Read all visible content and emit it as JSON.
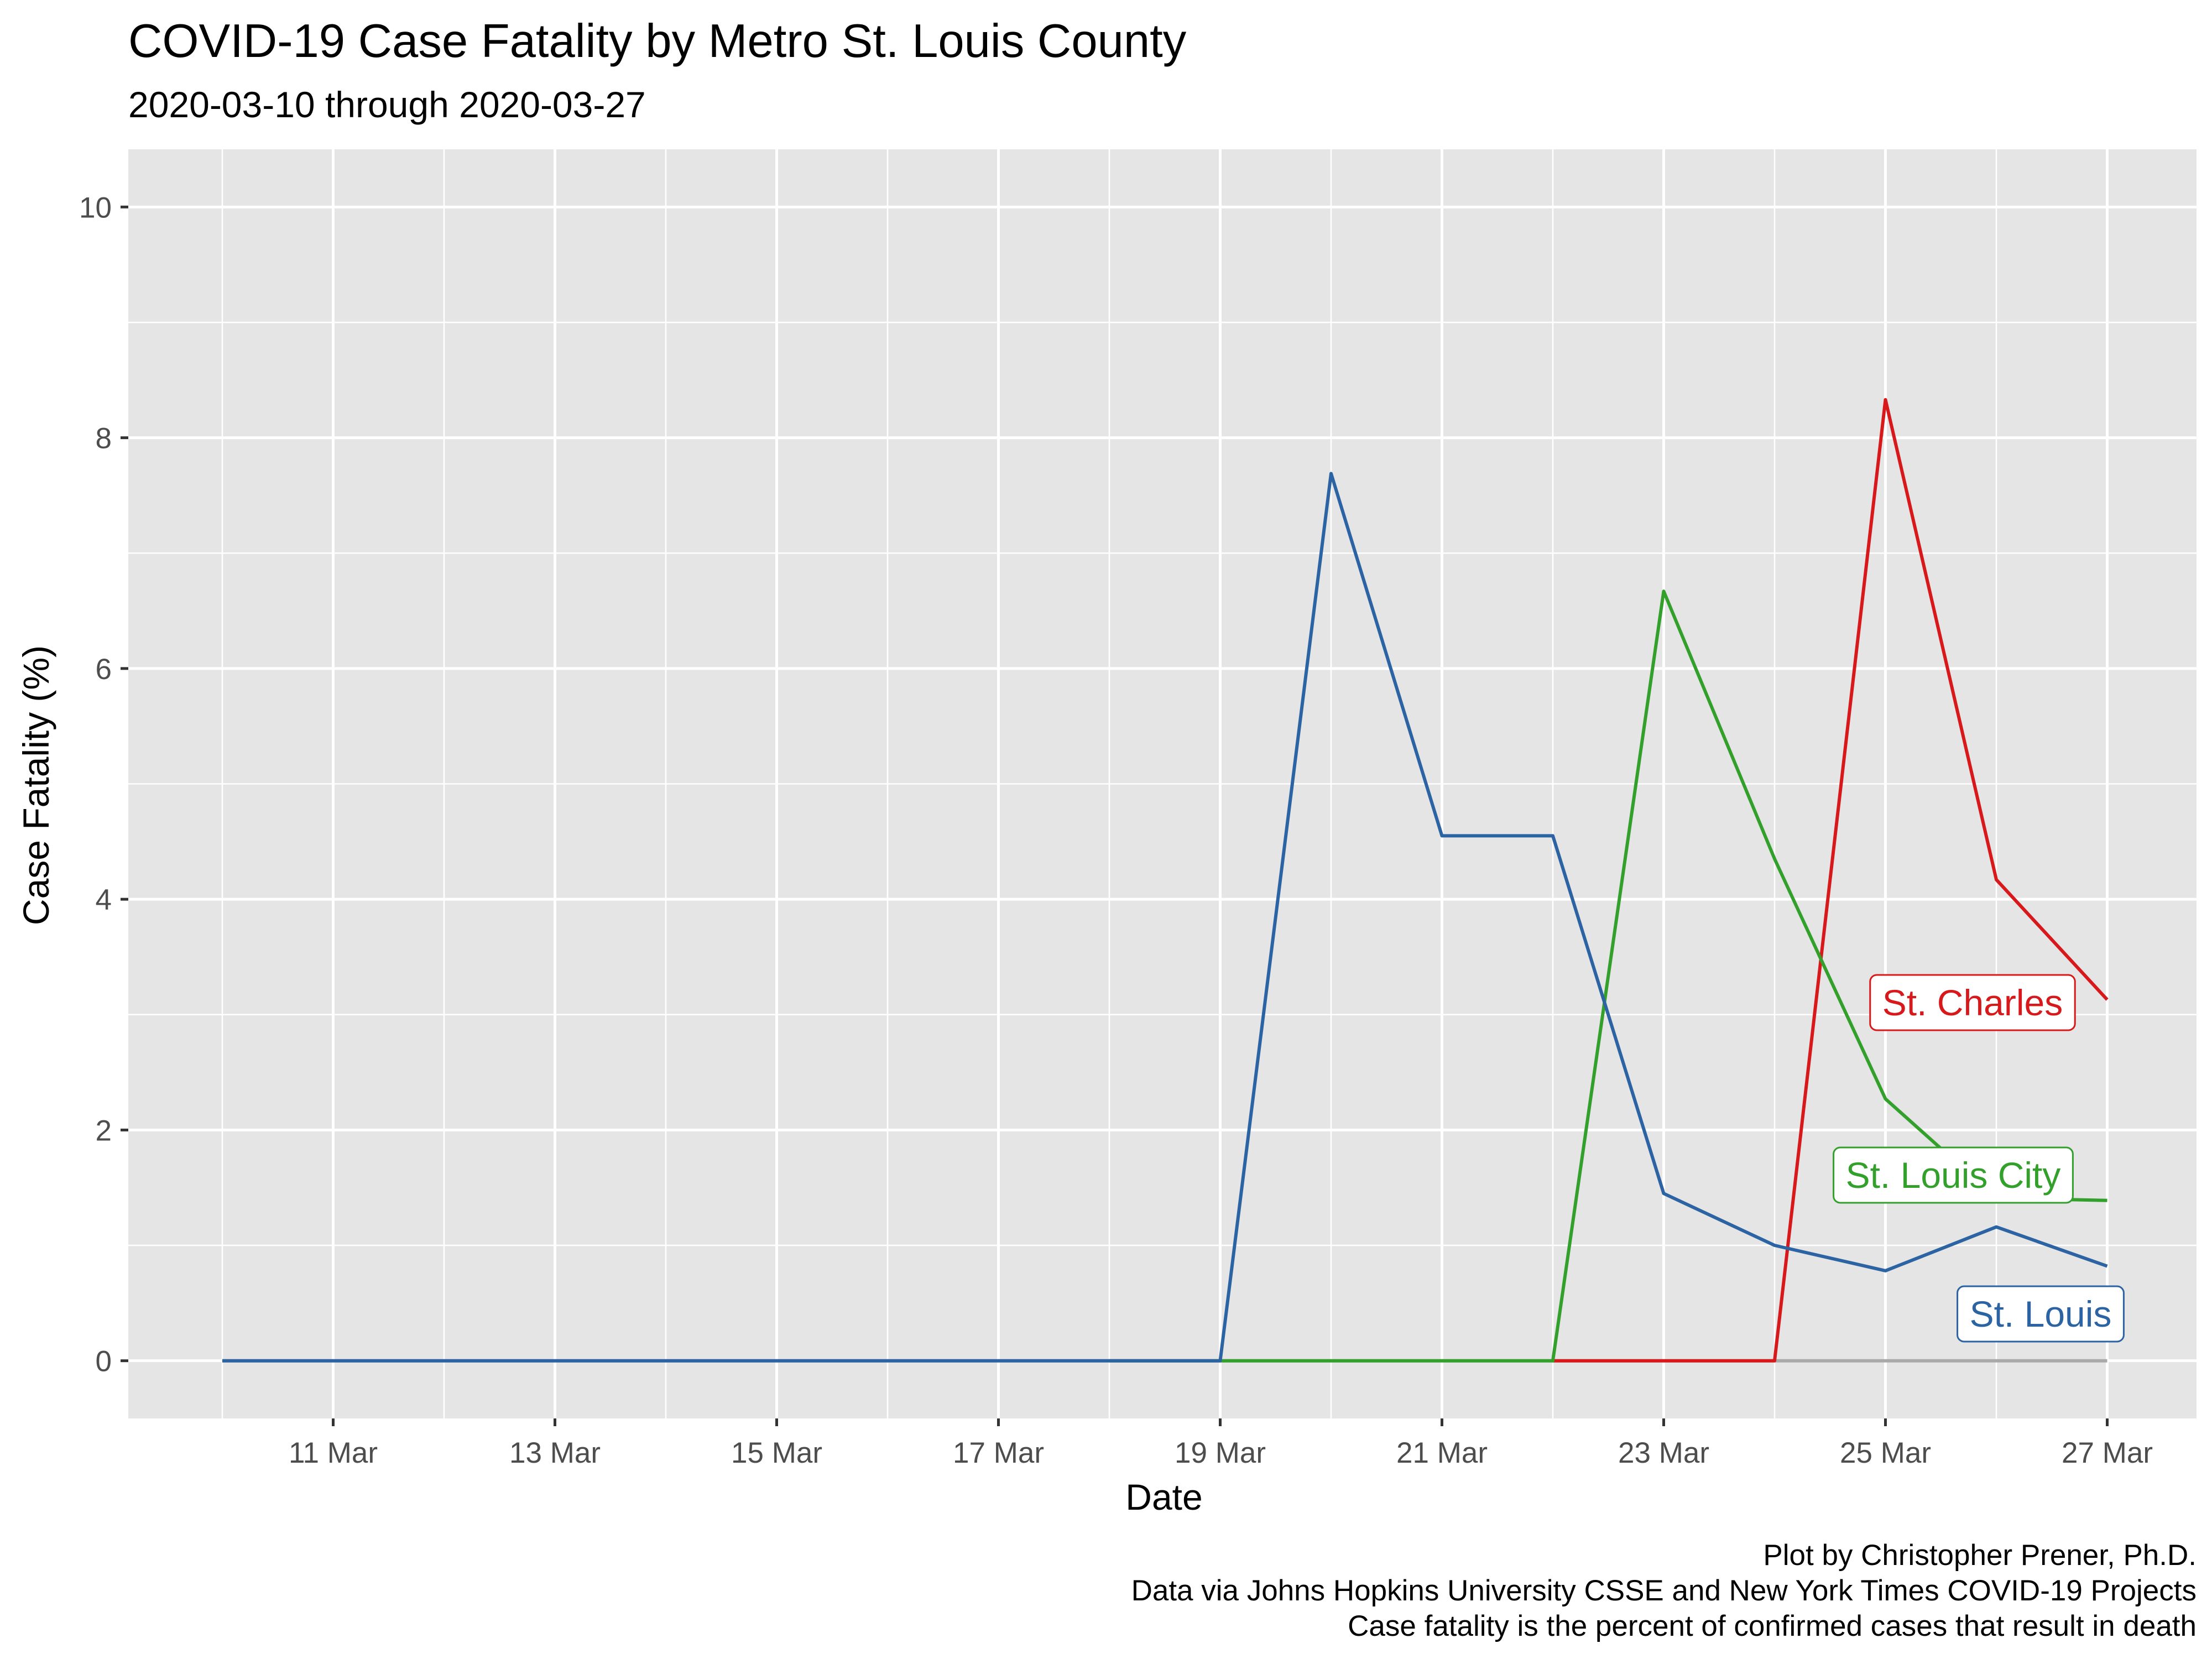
{
  "chart_data": {
    "type": "line",
    "title": "COVID-19 Case Fatality by Metro St. Louis County",
    "subtitle": "2020-03-10 through 2020-03-27",
    "xlabel": "Date",
    "ylabel": "Case Fatality (%)",
    "x": [
      "2020-03-10",
      "2020-03-11",
      "2020-03-12",
      "2020-03-13",
      "2020-03-14",
      "2020-03-15",
      "2020-03-16",
      "2020-03-17",
      "2020-03-18",
      "2020-03-19",
      "2020-03-20",
      "2020-03-21",
      "2020-03-22",
      "2020-03-23",
      "2020-03-24",
      "2020-03-25",
      "2020-03-26",
      "2020-03-27"
    ],
    "x_ticks": [
      "11 Mar",
      "13 Mar",
      "15 Mar",
      "17 Mar",
      "19 Mar",
      "21 Mar",
      "23 Mar",
      "25 Mar",
      "27 Mar"
    ],
    "y_ticks": [
      0,
      2,
      4,
      6,
      8,
      10
    ],
    "ylim": [
      -0.5,
      10.5
    ],
    "grid": true,
    "legend": "direct labels at line ends",
    "background": "#e5e5e5",
    "series": [
      {
        "key": "other",
        "color": "#a9a9a9",
        "x": [
          "2020-03-10",
          "2020-03-11",
          "2020-03-12",
          "2020-03-13",
          "2020-03-14",
          "2020-03-15",
          "2020-03-16",
          "2020-03-17",
          "2020-03-18",
          "2020-03-19",
          "2020-03-20",
          "2020-03-21",
          "2020-03-22",
          "2020-03-23",
          "2020-03-24",
          "2020-03-25",
          "2020-03-26",
          "2020-03-27"
        ],
        "values": [
          0,
          0,
          0,
          0,
          0,
          0,
          0,
          0,
          0,
          0,
          0,
          0,
          0,
          0,
          0,
          0,
          0,
          0
        ]
      },
      {
        "name": "St. Charles",
        "color": "#d7191c",
        "x": [
          "2020-03-22",
          "2020-03-23",
          "2020-03-24",
          "2020-03-25",
          "2020-03-26",
          "2020-03-27"
        ],
        "values": [
          0,
          0,
          0,
          8.33,
          4.17,
          3.13
        ]
      },
      {
        "name": "St. Louis City",
        "color": "#33a02c",
        "x": [
          "2020-03-18",
          "2020-03-19",
          "2020-03-20",
          "2020-03-21",
          "2020-03-22",
          "2020-03-23",
          "2020-03-24",
          "2020-03-25",
          "2020-03-26",
          "2020-03-27"
        ],
        "values": [
          0,
          0,
          0,
          0,
          0,
          6.67,
          4.35,
          2.27,
          1.41,
          1.39
        ]
      },
      {
        "name": "St. Louis",
        "color": "#2c63a3",
        "x": [
          "2020-03-10",
          "2020-03-11",
          "2020-03-12",
          "2020-03-13",
          "2020-03-14",
          "2020-03-15",
          "2020-03-16",
          "2020-03-17",
          "2020-03-18",
          "2020-03-19",
          "2020-03-20",
          "2020-03-21",
          "2020-03-22",
          "2020-03-23",
          "2020-03-24",
          "2020-03-25",
          "2020-03-26",
          "2020-03-27"
        ],
        "values": [
          0,
          0,
          0,
          0,
          0,
          0,
          0,
          0,
          0,
          0,
          7.69,
          4.55,
          4.55,
          1.45,
          1.0,
          0.78,
          1.16,
          0.82
        ]
      }
    ],
    "caption": [
      "Plot by Christopher Prener, Ph.D.",
      "Data via Johns Hopkins University CSSE and New York Times COVID-19 Projects",
      "Case fatality is the percent of confirmed cases that result in death"
    ]
  }
}
